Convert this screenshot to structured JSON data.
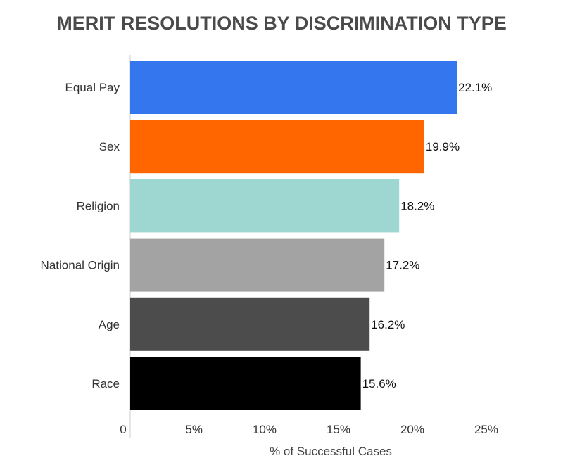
{
  "chart_data": {
    "type": "bar",
    "orientation": "horizontal",
    "title": "MERIT RESOLUTIONS BY DISCRIMINATION TYPE",
    "xlabel": "% of Successful Cases",
    "ylabel": "",
    "xlim": [
      0,
      25
    ],
    "ticks": [
      0,
      5,
      10,
      15,
      20,
      25
    ],
    "tick_labels": [
      "0",
      "5%",
      "10%",
      "15%",
      "20%",
      "25%"
    ],
    "categories": [
      "Equal Pay",
      "Sex",
      "Religion",
      "National Origin",
      "Age",
      "Race"
    ],
    "values": [
      22.1,
      19.9,
      18.2,
      17.2,
      16.2,
      15.6
    ],
    "value_labels": [
      "22.1%",
      "19.9%",
      "18.2%",
      "17.2%",
      "16.2%",
      "15.6%"
    ],
    "colors": [
      "#3476ee",
      "#ff6600",
      "#9ed6d2",
      "#a3a3a3",
      "#4c4c4c",
      "#000000"
    ],
    "grid": false,
    "legend": "none"
  }
}
